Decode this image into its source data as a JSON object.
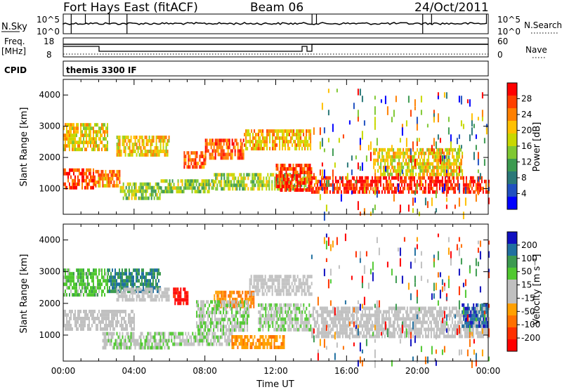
{
  "header": {
    "station": "Fort Hays East (fitACF)",
    "beam": "Beam 06",
    "date": "24/Oct/2011"
  },
  "noise_panel": {
    "left_label": "N.Sky",
    "right_label": "N.Search",
    "left_ticks": [
      "10^5",
      "10^0"
    ],
    "right_ticks": [
      "10^5",
      "10^0"
    ]
  },
  "freq_panel": {
    "left_label_line1": "Freq.",
    "left_label_line2": "[MHz]",
    "right_label": "Nave",
    "left_ticks": [
      "18",
      "8"
    ],
    "right_ticks": [
      "60",
      "0"
    ]
  },
  "cpid": {
    "label": "CPID",
    "value": "themis 3300 IF"
  },
  "chart_data": [
    {
      "type": "heatmap",
      "name": "power",
      "ylabel": "Slant Range [km]",
      "ylim": [
        180,
        4500
      ],
      "yticks": [
        "1000",
        "2000",
        "3000",
        "4000"
      ],
      "xlim": [
        0,
        24
      ],
      "colorbar": {
        "label": "Power [dB]",
        "ticks": [
          "28",
          "24",
          "20",
          "16",
          "12",
          "8",
          "4"
        ],
        "colors": [
          "#ff0000",
          "#ff4000",
          "#ff8000",
          "#ffc000",
          "#c8d800",
          "#7fc832",
          "#3c9a50",
          "#2a7878",
          "#2050c0",
          "#0000ff"
        ]
      },
      "regions": [
        {
          "t": [
            0.0,
            1.8
          ],
          "r": [
            1050,
            1650
          ],
          "level": 26
        },
        {
          "t": [
            1.8,
            3.2
          ],
          "r": [
            1100,
            1600
          ],
          "level": 22
        },
        {
          "t": [
            3.2,
            5.5
          ],
          "r": [
            700,
            1200
          ],
          "level": 14
        },
        {
          "t": [
            5.5,
            8.5
          ],
          "r": [
            900,
            1300
          ],
          "level": 14
        },
        {
          "t": [
            8.5,
            14.0
          ],
          "r": [
            1000,
            1500
          ],
          "level": 15
        },
        {
          "t": [
            14.0,
            24.0
          ],
          "r": [
            900,
            1400
          ],
          "level": 27
        },
        {
          "t": [
            0.0,
            2.5
          ],
          "r": [
            2300,
            3100
          ],
          "level": 18
        },
        {
          "t": [
            3.0,
            6.0
          ],
          "r": [
            2100,
            2700
          ],
          "level": 19
        },
        {
          "t": [
            6.8,
            8.0
          ],
          "r": [
            1700,
            2200
          ],
          "level": 24
        },
        {
          "t": [
            8.0,
            10.2
          ],
          "r": [
            2000,
            2600
          ],
          "level": 25
        },
        {
          "t": [
            10.2,
            14.0
          ],
          "r": [
            2300,
            2900
          ],
          "level": 20
        },
        {
          "t": [
            12.0,
            14.0
          ],
          "r": [
            1000,
            1800
          ],
          "level": 26
        },
        {
          "t": [
            17.5,
            22.5
          ],
          "r": [
            1500,
            2300
          ],
          "level": 18
        },
        {
          "t": [
            14.0,
            24.0
          ],
          "r": [
            200,
            4200
          ],
          "level": 12
        }
      ]
    },
    {
      "type": "heatmap",
      "name": "velocity",
      "ylabel": "Slant Range [km]",
      "xlabel": "Time UT",
      "ylim": [
        180,
        4500
      ],
      "yticks": [
        "1000",
        "2000",
        "3000",
        "4000"
      ],
      "xlim": [
        0,
        24
      ],
      "xticks": [
        "00:00",
        "04:00",
        "08:00",
        "12:00",
        "16:00",
        "20:00",
        "00:00"
      ],
      "colorbar": {
        "label": "Velocity [m s⁻¹]",
        "ticks": [
          "200",
          "100",
          "50",
          "15",
          "-15",
          "-50",
          "-100",
          "-200"
        ],
        "colors": [
          "#1010c0",
          "#2070a0",
          "#3c9a50",
          "#50c830",
          "#c0c0c0",
          "#c0c0c0",
          "#ffa000",
          "#ff7000",
          "#ff3000",
          "#ff0000"
        ]
      },
      "regions": [
        {
          "t": [
            0.0,
            2.5
          ],
          "r": [
            2300,
            3100
          ],
          "level": 60
        },
        {
          "t": [
            2.5,
            5.5
          ],
          "r": [
            2400,
            3100
          ],
          "level": 120
        },
        {
          "t": [
            0.0,
            4.0
          ],
          "r": [
            1200,
            1800
          ],
          "level": 0
        },
        {
          "t": [
            3.0,
            6.0
          ],
          "r": [
            2100,
            2500
          ],
          "level": 0
        },
        {
          "t": [
            6.2,
            7.0
          ],
          "r": [
            2000,
            2500
          ],
          "level": -180
        },
        {
          "t": [
            2.2,
            6.0
          ],
          "r": [
            600,
            1100
          ],
          "level": 30
        },
        {
          "t": [
            6.0,
            9.5
          ],
          "r": [
            700,
            1100
          ],
          "level": 30
        },
        {
          "t": [
            9.5,
            12.5
          ],
          "r": [
            600,
            1000
          ],
          "level": -70
        },
        {
          "t": [
            8.5,
            10.8
          ],
          "r": [
            1900,
            2400
          ],
          "level": -90
        },
        {
          "t": [
            7.5,
            10.5
          ],
          "r": [
            1200,
            2100
          ],
          "level": 30
        },
        {
          "t": [
            10.5,
            14.0
          ],
          "r": [
            2300,
            2900
          ],
          "level": 0
        },
        {
          "t": [
            11.0,
            14.0
          ],
          "r": [
            1200,
            2000
          ],
          "level": 30
        },
        {
          "t": [
            14.0,
            24.0
          ],
          "r": [
            1000,
            1900
          ],
          "level": 0
        },
        {
          "t": [
            22.5,
            24.0
          ],
          "r": [
            1300,
            2000
          ],
          "level": 150
        },
        {
          "t": [
            14.0,
            24.0
          ],
          "r": [
            200,
            4200
          ],
          "level": -30
        }
      ]
    }
  ],
  "colors": {
    "axes": "#000000",
    "background": "#ffffff"
  }
}
